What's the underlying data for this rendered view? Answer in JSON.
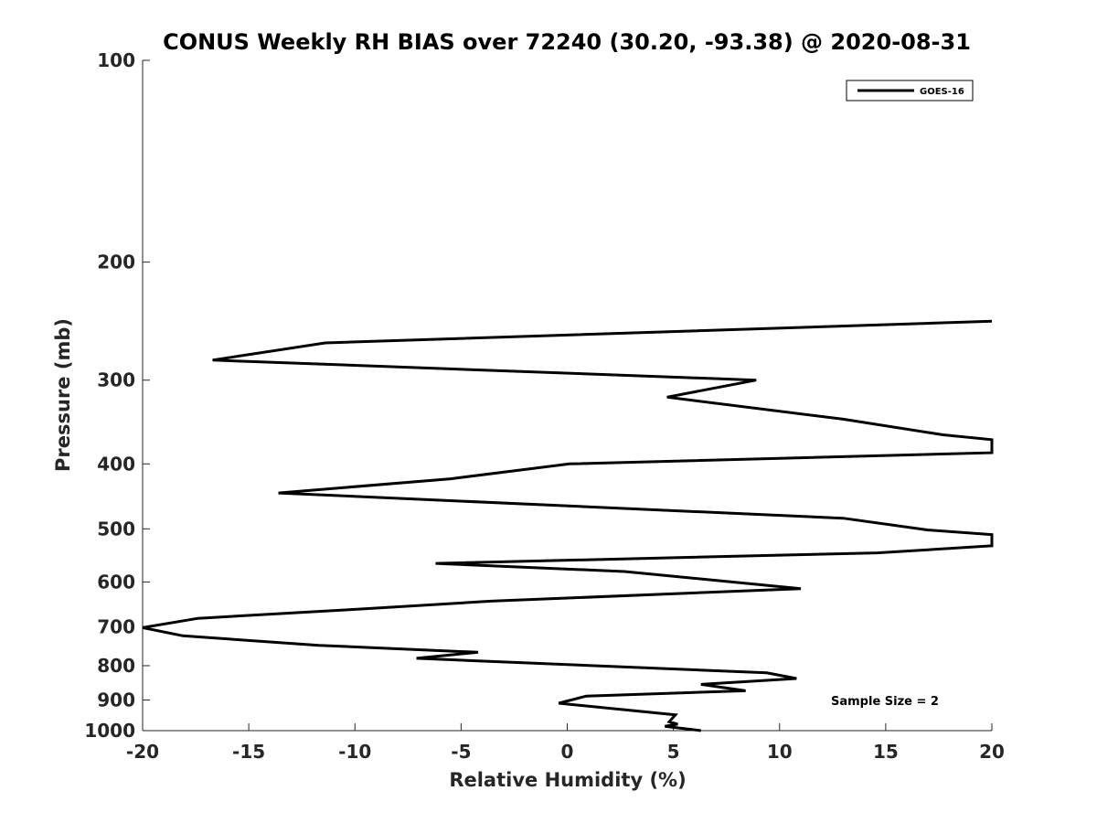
{
  "chart_data": {
    "type": "line",
    "title": "CONUS Weekly RH BIAS over 72240 (30.20, -93.38) @ 2020-08-31",
    "xlabel": "Relative Humidity (%)",
    "ylabel": "Pressure (mb)",
    "xlim": [
      -20,
      20
    ],
    "ylim": [
      100,
      1000
    ],
    "y_scale": "log",
    "y_reversed": true,
    "x_ticks": [
      "-20",
      "-15",
      "-10",
      "-5",
      "0",
      "5",
      "10",
      "15",
      "20"
    ],
    "y_ticks": [
      "100",
      "200",
      "300",
      "400",
      "500",
      "600",
      "700",
      "800",
      "900",
      "1000"
    ],
    "grid": false,
    "legend": {
      "placement": "top-right",
      "entries": [
        "GOES-16"
      ]
    },
    "annotation": "Sample Size = 2",
    "series": [
      {
        "name": "GOES-16",
        "color": "#000000",
        "points": [
          {
            "x": 20.0,
            "y": 245
          },
          {
            "x": -11.4,
            "y": 264
          },
          {
            "x": -16.7,
            "y": 280
          },
          {
            "x": 8.9,
            "y": 300
          },
          {
            "x": 4.7,
            "y": 318
          },
          {
            "x": 13.0,
            "y": 343
          },
          {
            "x": 17.7,
            "y": 362
          },
          {
            "x": 20.0,
            "y": 368
          },
          {
            "x": 20.0,
            "y": 385
          },
          {
            "x": 0.1,
            "y": 400
          },
          {
            "x": -5.5,
            "y": 421
          },
          {
            "x": -13.6,
            "y": 442
          },
          {
            "x": 13.0,
            "y": 482
          },
          {
            "x": 17.0,
            "y": 502
          },
          {
            "x": 20.0,
            "y": 510
          },
          {
            "x": 20.0,
            "y": 530
          },
          {
            "x": 14.6,
            "y": 543
          },
          {
            "x": -6.2,
            "y": 563
          },
          {
            "x": 2.7,
            "y": 579
          },
          {
            "x": 11.0,
            "y": 614
          },
          {
            "x": -3.6,
            "y": 641
          },
          {
            "x": -9.9,
            "y": 659
          },
          {
            "x": -17.4,
            "y": 680
          },
          {
            "x": -20.0,
            "y": 702
          },
          {
            "x": -18.1,
            "y": 722
          },
          {
            "x": -11.7,
            "y": 746
          },
          {
            "x": -4.2,
            "y": 764
          },
          {
            "x": -7.1,
            "y": 780
          },
          {
            "x": 9.4,
            "y": 820
          },
          {
            "x": 10.8,
            "y": 836
          },
          {
            "x": 6.3,
            "y": 853
          },
          {
            "x": 8.4,
            "y": 872
          },
          {
            "x": 0.9,
            "y": 888
          },
          {
            "x": -0.4,
            "y": 910
          },
          {
            "x": 5.1,
            "y": 947
          },
          {
            "x": 4.8,
            "y": 970
          },
          {
            "x": 5.2,
            "y": 978
          },
          {
            "x": 4.6,
            "y": 985
          },
          {
            "x": 6.3,
            "y": 1000
          }
        ]
      }
    ]
  }
}
